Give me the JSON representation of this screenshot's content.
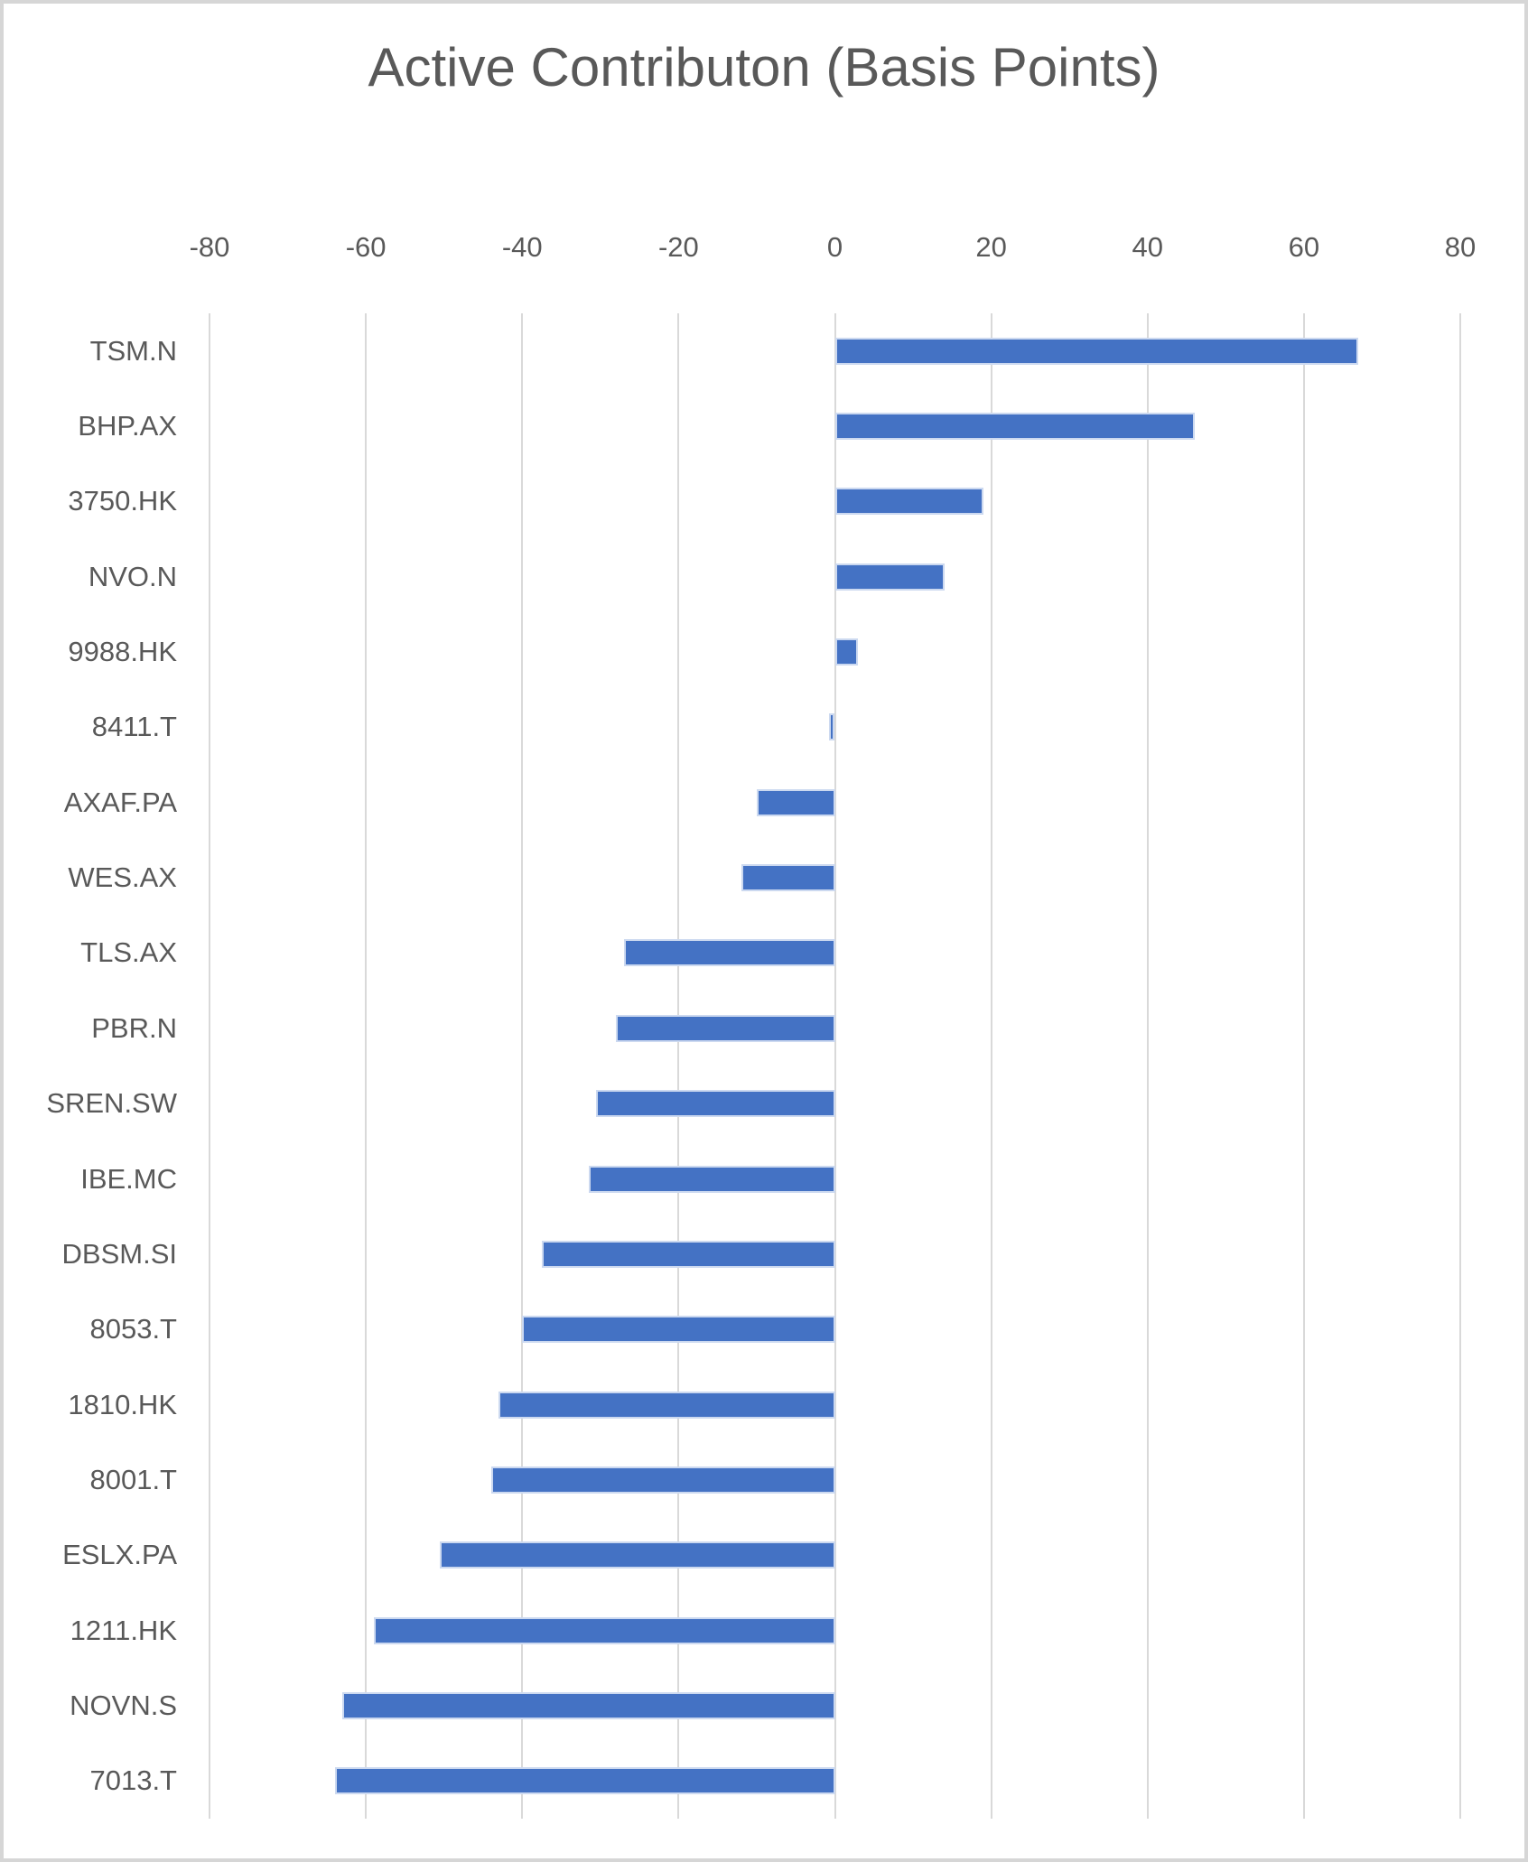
{
  "title": "Active Contributon (Basis Points)",
  "colors": {
    "bar": "#4472C4",
    "bar_border": "#ccd9f0",
    "gridline": "#d9d9d9",
    "text": "#595959",
    "frame_border": "#d6d6d6",
    "background": "#ffffff"
  },
  "chart_data": {
    "type": "bar",
    "orientation": "horizontal",
    "title": "Active Contributon (Basis Points)",
    "xlabel": "",
    "ylabel": "",
    "xlim": [
      -80,
      80
    ],
    "x_ticks": [
      -80,
      -60,
      -40,
      -20,
      0,
      20,
      40,
      60,
      80
    ],
    "grid": true,
    "legend": false,
    "categories": [
      "TSM.N",
      "BHP.AX",
      "3750.HK",
      "NVO.N",
      "9988.HK",
      "8411.T",
      "AXAF.PA",
      "WES.AX",
      "TLS.AX",
      "PBR.N",
      "SREN.SW",
      "IBE.MC",
      "DBSM.SI",
      "8053.T",
      "1810.HK",
      "8001.T",
      "ESLX.PA",
      "1211.HK",
      "NOVN.S",
      "7013.T"
    ],
    "values": [
      67,
      46,
      19,
      14,
      3,
      -0.7,
      -10,
      -12,
      -27,
      -28,
      -30.5,
      -31.5,
      -37.5,
      -40,
      -43,
      -44,
      -50.5,
      -59,
      -63,
      -64
    ]
  }
}
